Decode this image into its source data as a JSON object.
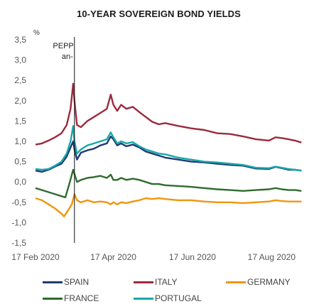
{
  "chart_data": {
    "type": "line",
    "title": "10-YEAR SOVEREIGN BOND YIELDS",
    "ylabel": "%",
    "xlabel": "",
    "ylim": [
      -1.5,
      3.5
    ],
    "yticks": [
      "3,5",
      "3,0",
      "2,5",
      "2,0",
      "1,5",
      "1,0",
      "0,5",
      "0,0",
      "-0,5",
      "-1,0",
      "-1,5"
    ],
    "xticks": [
      {
        "label": "17 Feb 2020",
        "day": 0
      },
      {
        "label": "17 Apr 2020",
        "day": 60
      },
      {
        "label": "17 Jun 2020",
        "day": 121
      },
      {
        "label": "17 Aug 2020",
        "day": 182
      }
    ],
    "annotation": {
      "line1": "PEPP",
      "line2": "an-",
      "day": 30
    },
    "series": [
      {
        "name": "SPAIN",
        "color": "#1f3b73",
        "points": [
          [
            0,
            0.28
          ],
          [
            5,
            0.25
          ],
          [
            10,
            0.3
          ],
          [
            15,
            0.38
          ],
          [
            20,
            0.45
          ],
          [
            24,
            0.62
          ],
          [
            27,
            0.85
          ],
          [
            29,
            1.0
          ],
          [
            30,
            0.8
          ],
          [
            32,
            0.55
          ],
          [
            35,
            0.72
          ],
          [
            40,
            0.78
          ],
          [
            45,
            0.82
          ],
          [
            50,
            0.9
          ],
          [
            55,
            0.95
          ],
          [
            58,
            1.12
          ],
          [
            60,
            1.05
          ],
          [
            63,
            0.9
          ],
          [
            66,
            0.95
          ],
          [
            70,
            0.88
          ],
          [
            75,
            0.92
          ],
          [
            80,
            0.85
          ],
          [
            85,
            0.75
          ],
          [
            90,
            0.7
          ],
          [
            95,
            0.65
          ],
          [
            100,
            0.6
          ],
          [
            110,
            0.55
          ],
          [
            120,
            0.5
          ],
          [
            130,
            0.48
          ],
          [
            140,
            0.45
          ],
          [
            150,
            0.42
          ],
          [
            160,
            0.4
          ],
          [
            170,
            0.33
          ],
          [
            180,
            0.32
          ],
          [
            185,
            0.37
          ],
          [
            190,
            0.34
          ],
          [
            195,
            0.3
          ],
          [
            200,
            0.3
          ],
          [
            205,
            0.28
          ]
        ]
      },
      {
        "name": "ITALY",
        "color": "#9c2a3e",
        "points": [
          [
            0,
            0.92
          ],
          [
            5,
            0.95
          ],
          [
            10,
            1.02
          ],
          [
            15,
            1.1
          ],
          [
            20,
            1.2
          ],
          [
            24,
            1.4
          ],
          [
            27,
            1.8
          ],
          [
            29,
            2.42
          ],
          [
            30,
            2.0
          ],
          [
            32,
            1.4
          ],
          [
            35,
            1.35
          ],
          [
            40,
            1.5
          ],
          [
            45,
            1.6
          ],
          [
            50,
            1.7
          ],
          [
            55,
            1.8
          ],
          [
            58,
            2.15
          ],
          [
            60,
            1.9
          ],
          [
            63,
            1.75
          ],
          [
            66,
            1.9
          ],
          [
            70,
            1.8
          ],
          [
            75,
            1.85
          ],
          [
            80,
            1.72
          ],
          [
            85,
            1.6
          ],
          [
            90,
            1.48
          ],
          [
            95,
            1.42
          ],
          [
            100,
            1.45
          ],
          [
            110,
            1.38
          ],
          [
            120,
            1.32
          ],
          [
            130,
            1.28
          ],
          [
            140,
            1.2
          ],
          [
            150,
            1.18
          ],
          [
            160,
            1.12
          ],
          [
            170,
            1.05
          ],
          [
            180,
            1.02
          ],
          [
            185,
            1.1
          ],
          [
            190,
            1.08
          ],
          [
            195,
            1.05
          ],
          [
            200,
            1.02
          ],
          [
            205,
            0.97
          ]
        ]
      },
      {
        "name": "GERMANY",
        "color": "#f0960e",
        "points": [
          [
            0,
            -0.4
          ],
          [
            5,
            -0.45
          ],
          [
            10,
            -0.55
          ],
          [
            15,
            -0.65
          ],
          [
            20,
            -0.78
          ],
          [
            22,
            -0.85
          ],
          [
            25,
            -0.7
          ],
          [
            28,
            -0.55
          ],
          [
            30,
            -0.3
          ],
          [
            32,
            -0.45
          ],
          [
            35,
            -0.5
          ],
          [
            40,
            -0.45
          ],
          [
            45,
            -0.5
          ],
          [
            50,
            -0.48
          ],
          [
            55,
            -0.5
          ],
          [
            58,
            -0.55
          ],
          [
            60,
            -0.5
          ],
          [
            63,
            -0.55
          ],
          [
            66,
            -0.5
          ],
          [
            70,
            -0.52
          ],
          [
            75,
            -0.48
          ],
          [
            80,
            -0.45
          ],
          [
            85,
            -0.4
          ],
          [
            90,
            -0.42
          ],
          [
            95,
            -0.4
          ],
          [
            100,
            -0.42
          ],
          [
            110,
            -0.45
          ],
          [
            120,
            -0.45
          ],
          [
            130,
            -0.48
          ],
          [
            140,
            -0.5
          ],
          [
            150,
            -0.5
          ],
          [
            160,
            -0.52
          ],
          [
            170,
            -0.5
          ],
          [
            180,
            -0.48
          ],
          [
            185,
            -0.45
          ],
          [
            190,
            -0.47
          ],
          [
            195,
            -0.48
          ],
          [
            200,
            -0.48
          ],
          [
            205,
            -0.48
          ]
        ]
      },
      {
        "name": "FRANCE",
        "color": "#2f6b2f",
        "points": [
          [
            0,
            -0.15
          ],
          [
            5,
            -0.2
          ],
          [
            10,
            -0.25
          ],
          [
            15,
            -0.3
          ],
          [
            20,
            -0.35
          ],
          [
            23,
            -0.38
          ],
          [
            26,
            -0.05
          ],
          [
            29,
            0.3
          ],
          [
            30,
            0.2
          ],
          [
            32,
            0.0
          ],
          [
            35,
            0.05
          ],
          [
            40,
            0.1
          ],
          [
            45,
            0.12
          ],
          [
            50,
            0.15
          ],
          [
            55,
            0.1
          ],
          [
            58,
            0.18
          ],
          [
            60,
            0.05
          ],
          [
            63,
            0.05
          ],
          [
            66,
            0.1
          ],
          [
            70,
            0.05
          ],
          [
            75,
            0.08
          ],
          [
            80,
            0.05
          ],
          [
            85,
            0.0
          ],
          [
            90,
            -0.05
          ],
          [
            95,
            -0.05
          ],
          [
            100,
            -0.08
          ],
          [
            110,
            -0.1
          ],
          [
            120,
            -0.12
          ],
          [
            130,
            -0.15
          ],
          [
            140,
            -0.18
          ],
          [
            150,
            -0.2
          ],
          [
            160,
            -0.22
          ],
          [
            170,
            -0.2
          ],
          [
            180,
            -0.18
          ],
          [
            185,
            -0.15
          ],
          [
            190,
            -0.18
          ],
          [
            195,
            -0.2
          ],
          [
            200,
            -0.2
          ],
          [
            205,
            -0.22
          ]
        ]
      },
      {
        "name": "PORTUGAL",
        "color": "#1aa8a8",
        "points": [
          [
            0,
            0.32
          ],
          [
            5,
            0.3
          ],
          [
            10,
            0.32
          ],
          [
            15,
            0.4
          ],
          [
            20,
            0.5
          ],
          [
            24,
            0.7
          ],
          [
            27,
            1.0
          ],
          [
            29,
            1.38
          ],
          [
            30,
            1.0
          ],
          [
            32,
            0.7
          ],
          [
            35,
            0.8
          ],
          [
            40,
            0.9
          ],
          [
            45,
            0.95
          ],
          [
            50,
            1.0
          ],
          [
            55,
            1.05
          ],
          [
            58,
            1.22
          ],
          [
            60,
            1.1
          ],
          [
            63,
            0.95
          ],
          [
            66,
            1.0
          ],
          [
            70,
            0.95
          ],
          [
            75,
            0.98
          ],
          [
            80,
            0.88
          ],
          [
            85,
            0.8
          ],
          [
            90,
            0.75
          ],
          [
            95,
            0.7
          ],
          [
            100,
            0.68
          ],
          [
            110,
            0.6
          ],
          [
            120,
            0.55
          ],
          [
            130,
            0.5
          ],
          [
            140,
            0.48
          ],
          [
            150,
            0.45
          ],
          [
            160,
            0.42
          ],
          [
            170,
            0.35
          ],
          [
            180,
            0.34
          ],
          [
            185,
            0.38
          ],
          [
            190,
            0.35
          ],
          [
            195,
            0.32
          ],
          [
            200,
            0.3
          ],
          [
            205,
            0.28
          ]
        ]
      }
    ],
    "legend": "bottom",
    "grid": false
  }
}
